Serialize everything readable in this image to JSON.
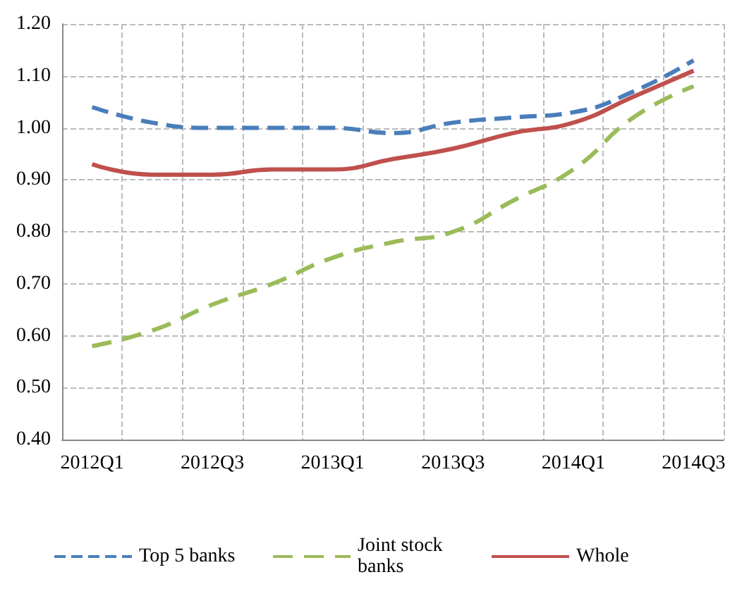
{
  "chart_data": {
    "type": "line",
    "categories": [
      "2012Q1",
      null,
      "2012Q3",
      null,
      "2013Q1",
      null,
      "2013Q3",
      null,
      "2014Q1",
      null,
      "2014Q3"
    ],
    "series": [
      {
        "name": "Top 5 banks",
        "color": "#4a7ebb",
        "line_style": "dashed",
        "values": [
          1.04,
          1.01,
          1.0,
          1.0,
          1.0,
          0.99,
          1.01,
          1.02,
          1.03,
          1.07,
          1.13
        ]
      },
      {
        "name": "Joint stock banks",
        "color": "#9bbb59",
        "line_style": "dashed",
        "values": [
          0.58,
          0.61,
          0.66,
          0.7,
          0.75,
          0.78,
          0.8,
          0.86,
          0.92,
          1.02,
          1.08
        ]
      },
      {
        "name": "Whole",
        "color": "#c0504d",
        "line_style": "solid",
        "values": [
          0.93,
          0.91,
          0.91,
          0.92,
          0.92,
          0.94,
          0.96,
          0.99,
          1.01,
          1.06,
          1.11
        ]
      }
    ],
    "ylim": [
      0.4,
      1.2
    ],
    "yticks": [
      {
        "value": 0.4,
        "label": "0.40"
      },
      {
        "value": 0.5,
        "label": "0.50"
      },
      {
        "value": 0.6,
        "label": "0.60"
      },
      {
        "value": 0.7,
        "label": "0.70"
      },
      {
        "value": 0.8,
        "label": "0.80"
      },
      {
        "value": 0.9,
        "label": "0.90"
      },
      {
        "value": 1.0,
        "label": "1.00"
      },
      {
        "value": 1.1,
        "label": "1.10"
      },
      {
        "value": 1.2,
        "label": "1.20"
      }
    ],
    "grid": true,
    "legend": "bottom",
    "marker": "none"
  }
}
